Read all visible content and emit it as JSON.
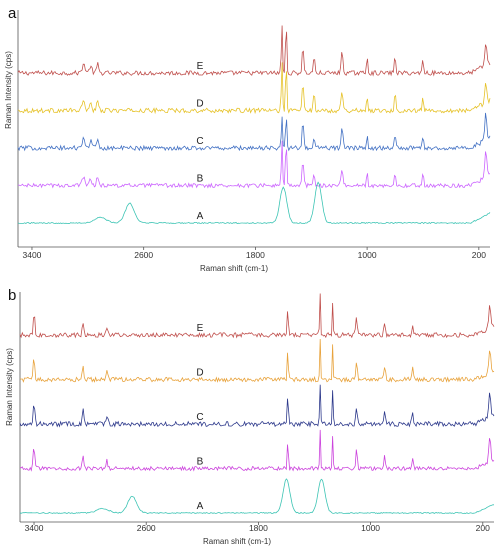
{
  "chart_data": [
    {
      "panel": "a",
      "type": "line",
      "xlabel": "Raman shift (cm-1)",
      "ylabel": "Raman Intensity (cps)",
      "xlim": [
        3500,
        120
      ],
      "x_reversed": true,
      "xticks": [
        3400,
        2600,
        1800,
        1000,
        200
      ],
      "series": [
        {
          "name": "E",
          "color": "#c0504d",
          "offset": 1,
          "base": 45,
          "noise": 2.5,
          "peaks": [
            [
              3030,
              10,
              15
            ],
            [
              2980,
              8,
              12
            ],
            [
              2930,
              10,
              10
            ],
            [
              1610,
              55,
              6
            ],
            [
              1580,
              60,
              6
            ],
            [
              1460,
              30,
              8
            ],
            [
              1380,
              18,
              8
            ],
            [
              1180,
              22,
              10
            ],
            [
              1000,
              22,
              6
            ],
            [
              800,
              18,
              8
            ],
            [
              600,
              16,
              7
            ],
            [
              150,
              25,
              10
            ]
          ]
        },
        {
          "name": "D",
          "color": "#e6c229",
          "offset": 2,
          "base": 45,
          "noise": 2.5,
          "peaks": [
            [
              3030,
              10,
              15
            ],
            [
              2980,
              8,
              12
            ],
            [
              2930,
              10,
              10
            ],
            [
              1610,
              55,
              6
            ],
            [
              1580,
              60,
              6
            ],
            [
              1460,
              32,
              8
            ],
            [
              1380,
              18,
              8
            ],
            [
              1180,
              22,
              10
            ],
            [
              1000,
              18,
              6
            ],
            [
              800,
              18,
              8
            ],
            [
              600,
              14,
              7
            ],
            [
              150,
              25,
              10
            ]
          ]
        },
        {
          "name": "C",
          "color": "#4472c4",
          "offset": 3,
          "base": 45,
          "noise": 2.5,
          "peaks": [
            [
              3030,
              10,
              15
            ],
            [
              2980,
              8,
              12
            ],
            [
              2930,
              10,
              10
            ],
            [
              1610,
              35,
              6
            ],
            [
              1580,
              40,
              6
            ],
            [
              1460,
              32,
              8
            ],
            [
              1380,
              14,
              8
            ],
            [
              1180,
              22,
              10
            ],
            [
              1000,
              18,
              6
            ],
            [
              800,
              14,
              8
            ],
            [
              600,
              14,
              7
            ],
            [
              150,
              30,
              10
            ]
          ]
        },
        {
          "name": "B",
          "color": "#cc66ff",
          "offset": 4,
          "base": 45,
          "noise": 2.2,
          "peaks": [
            [
              3030,
              10,
              15
            ],
            [
              2980,
              8,
              12
            ],
            [
              2930,
              10,
              10
            ],
            [
              1610,
              50,
              6
            ],
            [
              1580,
              55,
              6
            ],
            [
              1460,
              30,
              8
            ],
            [
              1380,
              14,
              8
            ],
            [
              1180,
              20,
              10
            ],
            [
              1000,
              18,
              6
            ],
            [
              800,
              14,
              8
            ],
            [
              600,
              14,
              7
            ],
            [
              150,
              30,
              10
            ]
          ]
        },
        {
          "name": "A",
          "color": "#3cc4b4",
          "offset": 5,
          "base": 45,
          "noise": 0.7,
          "peaks": [
            [
              2910,
              6,
              60
            ],
            [
              2700,
              22,
              45
            ],
            [
              1600,
              40,
              35
            ],
            [
              1350,
              45,
              35
            ]
          ]
        }
      ]
    },
    {
      "panel": "b",
      "type": "line",
      "xlabel": "Raman shift (cm-1)",
      "ylabel": "Raman Intensity (cps)",
      "xlim": [
        3500,
        120
      ],
      "x_reversed": true,
      "xticks": [
        3400,
        2600,
        1800,
        1000,
        200
      ],
      "series": [
        {
          "name": "E",
          "color": "#c0504d",
          "offset": 1,
          "base": 45,
          "noise": 3.0,
          "peaks": [
            [
              3400,
              30,
              8
            ],
            [
              3050,
              18,
              8
            ],
            [
              2880,
              12,
              8
            ],
            [
              1590,
              45,
              5
            ],
            [
              1360,
              55,
              5
            ],
            [
              1270,
              45,
              5
            ],
            [
              1100,
              25,
              8
            ],
            [
              900,
              18,
              8
            ],
            [
              700,
              14,
              8
            ],
            [
              150,
              30,
              10
            ]
          ]
        },
        {
          "name": "D",
          "color": "#e8a33d",
          "offset": 2,
          "base": 45,
          "noise": 3.0,
          "peaks": [
            [
              3400,
              30,
              8
            ],
            [
              3050,
              18,
              8
            ],
            [
              2880,
              12,
              8
            ],
            [
              1590,
              45,
              5
            ],
            [
              1360,
              55,
              5
            ],
            [
              1270,
              45,
              5
            ],
            [
              1100,
              25,
              8
            ],
            [
              900,
              18,
              8
            ],
            [
              700,
              14,
              8
            ],
            [
              150,
              30,
              10
            ]
          ]
        },
        {
          "name": "C",
          "color": "#2e3a8c",
          "offset": 3,
          "base": 45,
          "noise": 3.2,
          "peaks": [
            [
              3400,
              30,
              8
            ],
            [
              3050,
              18,
              8
            ],
            [
              2880,
              12,
              8
            ],
            [
              1590,
              45,
              5
            ],
            [
              1360,
              55,
              5
            ],
            [
              1270,
              45,
              5
            ],
            [
              1100,
              25,
              8
            ],
            [
              900,
              18,
              8
            ],
            [
              700,
              14,
              8
            ],
            [
              150,
              35,
              10
            ]
          ]
        },
        {
          "name": "B",
          "color": "#cc44dd",
          "offset": 4,
          "base": 45,
          "noise": 2.6,
          "peaks": [
            [
              3400,
              28,
              8
            ],
            [
              3050,
              18,
              8
            ],
            [
              2880,
              12,
              8
            ],
            [
              1590,
              45,
              5
            ],
            [
              1360,
              55,
              5
            ],
            [
              1270,
              45,
              5
            ],
            [
              1100,
              25,
              8
            ],
            [
              900,
              18,
              8
            ],
            [
              700,
              14,
              8
            ],
            [
              150,
              35,
              10
            ]
          ]
        },
        {
          "name": "A",
          "color": "#3cc4b4",
          "offset": 5,
          "base": 45,
          "noise": 0.7,
          "peaks": [
            [
              2910,
              6,
              60
            ],
            [
              2700,
              22,
              45
            ],
            [
              1600,
              45,
              35
            ],
            [
              1350,
              45,
              35
            ]
          ]
        }
      ]
    }
  ]
}
